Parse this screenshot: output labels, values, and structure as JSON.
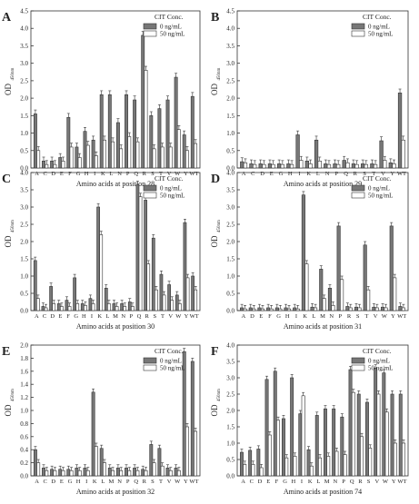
{
  "chart_data": [
    {
      "type": "bar",
      "panel_letter": "A",
      "xlabel": "Amino acids at position 28",
      "ylabel": "OD",
      "ylabel_sub": "450nm",
      "ylim": [
        0,
        4.5
      ],
      "yticks": [
        "0.0",
        "0.5",
        "1.0",
        "1.5",
        "2.0",
        "2.5",
        "3.0",
        "3.5",
        "4.0",
        "4.5"
      ],
      "categories": [
        "A",
        "C",
        "D",
        "E",
        "F",
        "G",
        "H",
        "I",
        "K",
        "L",
        "N",
        "P",
        "Q",
        "R",
        "S",
        "T",
        "V",
        "W",
        "Y",
        "WT"
      ],
      "legend_title": "CIT Conc.",
      "legend_position": "top-right",
      "series": [
        {
          "name": "0 ng/mL",
          "color": "#777777",
          "values": [
            1.55,
            0.2,
            0.2,
            0.3,
            1.45,
            0.6,
            1.05,
            0.8,
            2.1,
            2.1,
            1.3,
            2.1,
            1.95,
            3.8,
            1.5,
            1.7,
            1.95,
            2.6,
            0.95,
            2.05
          ]
        },
        {
          "name": "50 ng/mL",
          "color": "#ffffff",
          "values": [
            0.5,
            0.1,
            0.1,
            0.2,
            0.6,
            0.3,
            0.65,
            0.35,
            0.8,
            0.75,
            0.55,
            0.9,
            0.75,
            2.8,
            0.55,
            0.6,
            0.6,
            1.1,
            0.5,
            0.7
          ]
        }
      ]
    },
    {
      "type": "bar",
      "panel_letter": "B",
      "xlabel": "Amino acids at position 29",
      "ylabel": "OD",
      "ylabel_sub": "450nm",
      "ylim": [
        0,
        4.5
      ],
      "yticks": [
        "0.0",
        "0.5",
        "1.0",
        "1.5",
        "2.0",
        "2.5",
        "3.0",
        "3.5",
        "4.0",
        "4.5"
      ],
      "categories": [
        "A",
        "C",
        "D",
        "E",
        "G",
        "H",
        "I",
        "K",
        "L",
        "N",
        "P",
        "Q",
        "R",
        "S",
        "T",
        "V",
        "Y",
        "WT"
      ],
      "legend_title": "CIT Conc.",
      "legend_position": "top-right",
      "series": [
        {
          "name": "0 ng/mL",
          "color": "#777777",
          "values": [
            0.18,
            0.12,
            0.12,
            0.12,
            0.12,
            0.12,
            0.95,
            0.2,
            0.8,
            0.12,
            0.12,
            0.22,
            0.12,
            0.12,
            0.12,
            0.78,
            0.15,
            2.15
          ]
        },
        {
          "name": "50 ng/mL",
          "color": "#ffffff",
          "values": [
            0.15,
            0.1,
            0.1,
            0.1,
            0.1,
            0.1,
            0.22,
            0.12,
            0.2,
            0.1,
            0.1,
            0.15,
            0.1,
            0.1,
            0.1,
            0.22,
            0.12,
            0.8
          ]
        }
      ]
    },
    {
      "type": "bar",
      "panel_letter": "C",
      "xlabel": "Amino acids at position 30",
      "ylabel": "OD",
      "ylabel_sub": "450nm",
      "ylim": [
        0,
        4.0
      ],
      "yticks": [
        "0.0",
        "0.5",
        "1.0",
        "1.5",
        "2.0",
        "2.5",
        "3.0",
        "3.5",
        "4.0"
      ],
      "categories": [
        "A",
        "C",
        "D",
        "E",
        "F",
        "G",
        "H",
        "I",
        "K",
        "L",
        "M",
        "N",
        "P",
        "Q",
        "R",
        "S",
        "T",
        "V",
        "W",
        "Y",
        "WT"
      ],
      "legend_title": "CIT Conc.",
      "legend_position": "top-right",
      "series": [
        {
          "name": "0 ng/mL",
          "color": "#777777",
          "values": [
            1.45,
            0.12,
            0.7,
            0.2,
            0.3,
            0.95,
            0.2,
            0.35,
            3.0,
            0.65,
            0.2,
            0.2,
            0.25,
            3.65,
            3.2,
            2.1,
            1.05,
            0.75,
            0.45,
            2.55,
            1.0
          ]
        },
        {
          "name": "50 ng/mL",
          "color": "#ffffff",
          "values": [
            0.35,
            0.08,
            0.2,
            0.12,
            0.12,
            0.2,
            0.15,
            0.2,
            2.2,
            0.2,
            0.12,
            0.12,
            0.12,
            3.3,
            1.35,
            0.6,
            0.45,
            0.3,
            0.2,
            0.95,
            0.6
          ]
        }
      ]
    },
    {
      "type": "bar",
      "panel_letter": "D",
      "xlabel": "Amino acids at position 31",
      "ylabel": "OD",
      "ylabel_sub": "450nm",
      "ylim": [
        0,
        4.0
      ],
      "yticks": [
        "0.0",
        "0.5",
        "1.0",
        "1.5",
        "2.0",
        "2.5",
        "3.0",
        "3.5",
        "4.0"
      ],
      "categories": [
        "A",
        "D",
        "E",
        "F",
        "G",
        "H",
        "I",
        "K",
        "L",
        "M",
        "N",
        "P",
        "R",
        "S",
        "T",
        "V",
        "W",
        "Y",
        "WT"
      ],
      "legend_title": "CIT Conc.",
      "legend_position": "top-right",
      "series": [
        {
          "name": "0 ng/mL",
          "color": "#777777",
          "values": [
            0.08,
            0.08,
            0.08,
            0.08,
            0.08,
            0.08,
            0.08,
            3.35,
            0.1,
            1.2,
            0.65,
            2.45,
            0.12,
            0.1,
            1.9,
            0.1,
            0.1,
            2.45,
            0.12
          ]
        },
        {
          "name": "50 ng/mL",
          "color": "#ffffff",
          "values": [
            0.05,
            0.05,
            0.05,
            0.05,
            0.05,
            0.05,
            0.05,
            1.35,
            0.08,
            0.35,
            0.15,
            0.9,
            0.08,
            0.08,
            0.6,
            0.08,
            0.08,
            0.95,
            0.08
          ]
        }
      ]
    },
    {
      "type": "bar",
      "panel_letter": "E",
      "xlabel": "Amino acids at position 32",
      "ylabel": "OD",
      "ylabel_sub": "450nm",
      "ylim": [
        0,
        2.0
      ],
      "yticks": [
        "0.0",
        "0.2",
        "0.4",
        "0.6",
        "0.8",
        "1.0",
        "1.2",
        "1.4",
        "1.6",
        "1.8",
        "2.0"
      ],
      "categories": [
        "A",
        "C",
        "D",
        "E",
        "G",
        "H",
        "I",
        "K",
        "L",
        "M",
        "N",
        "P",
        "Q",
        "R",
        "S",
        "T",
        "V",
        "W",
        "Y",
        "WT"
      ],
      "legend_title": "CIT Conc.",
      "legend_position": "top-right",
      "series": [
        {
          "name": "0 ng/mL",
          "color": "#777777",
          "values": [
            0.4,
            0.12,
            0.1,
            0.1,
            0.1,
            0.12,
            0.12,
            1.28,
            0.42,
            0.12,
            0.12,
            0.12,
            0.12,
            0.1,
            0.48,
            0.42,
            0.12,
            0.12,
            1.9,
            1.75
          ]
        },
        {
          "name": "50 ng/mL",
          "color": "#ffffff",
          "values": [
            0.2,
            0.08,
            0.08,
            0.08,
            0.08,
            0.08,
            0.08,
            0.45,
            0.2,
            0.08,
            0.08,
            0.08,
            0.08,
            0.08,
            0.2,
            0.15,
            0.08,
            0.08,
            0.75,
            0.68
          ]
        }
      ]
    },
    {
      "type": "bar",
      "panel_letter": "F",
      "xlabel": "Amino acids at position 74",
      "ylabel": "OD",
      "ylabel_sub": "450nm",
      "ylim": [
        0,
        4.0
      ],
      "yticks": [
        "0.0",
        "0.5",
        "1.0",
        "1.5",
        "2.0",
        "2.5",
        "3.0",
        "3.5",
        "4.0"
      ],
      "categories": [
        "A",
        "C",
        "D",
        "E",
        "F",
        "G",
        "H",
        "I",
        "K",
        "L",
        "M",
        "N",
        "P",
        "Q",
        "R",
        "S",
        "V",
        "W",
        "Y",
        "WT"
      ],
      "legend_title": "CIT Conc.",
      "legend_position": "top-right",
      "series": [
        {
          "name": "0 ng/mL",
          "color": "#777777",
          "values": [
            0.72,
            0.78,
            0.82,
            2.95,
            3.2,
            1.75,
            3.0,
            1.9,
            0.8,
            1.85,
            2.05,
            2.05,
            1.8,
            3.25,
            2.5,
            2.25,
            3.3,
            3.15,
            2.5,
            2.5
          ]
        },
        {
          "name": "50 ng/mL",
          "color": "#ffffff",
          "values": [
            0.35,
            0.35,
            0.25,
            1.25,
            1.7,
            0.55,
            0.6,
            2.45,
            0.3,
            0.55,
            0.6,
            0.75,
            0.65,
            2.55,
            1.2,
            0.85,
            2.5,
            1.95,
            1.0,
            1.0
          ]
        }
      ]
    }
  ]
}
